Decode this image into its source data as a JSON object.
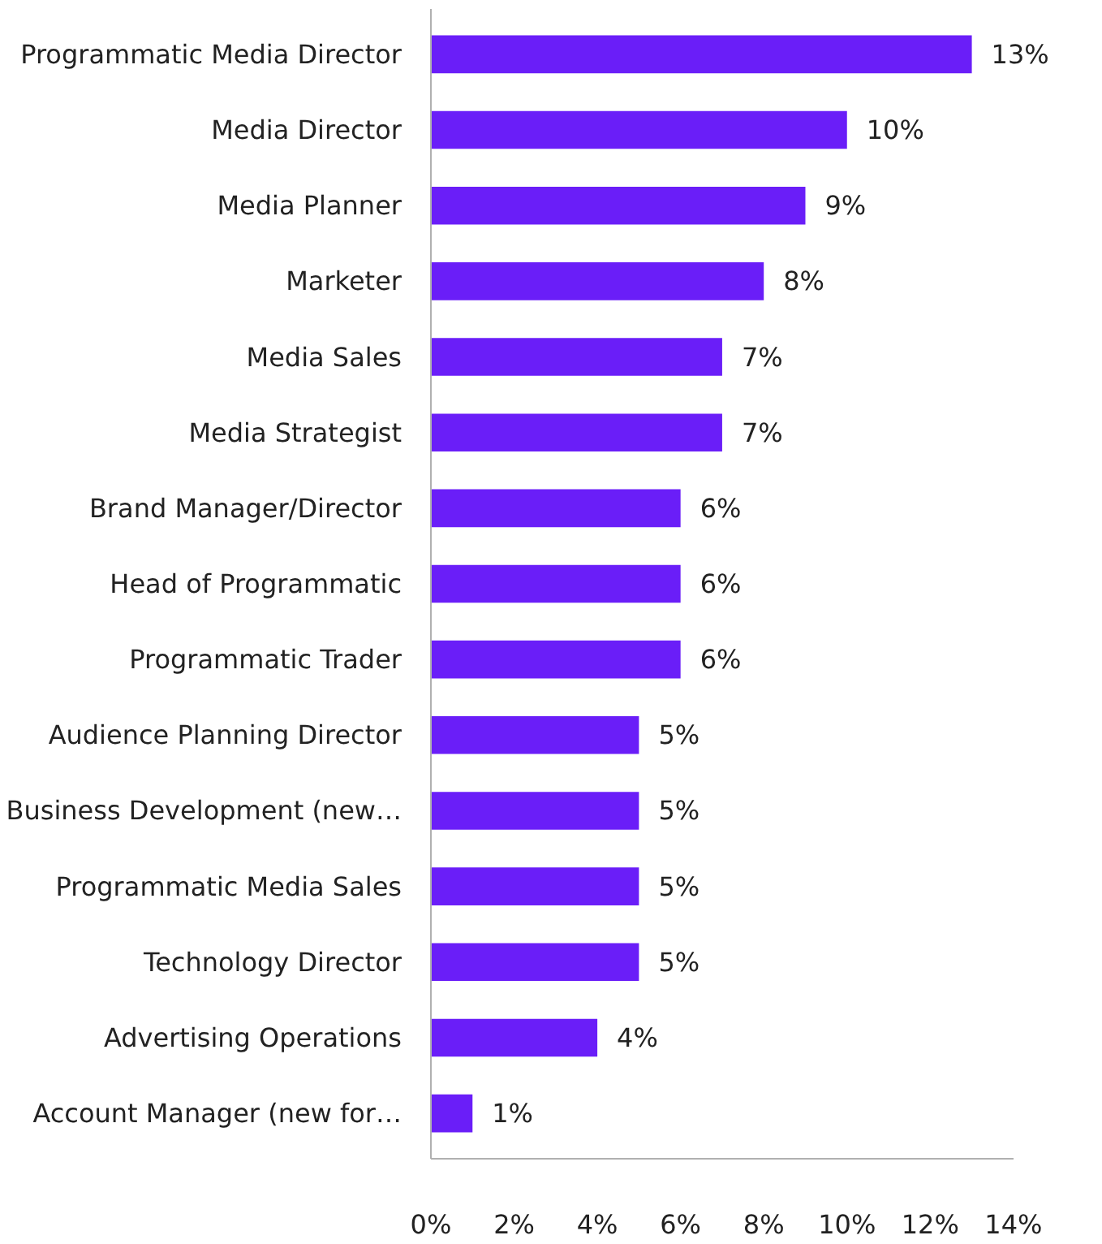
{
  "chart_data": {
    "type": "bar",
    "orientation": "horizontal",
    "categories": [
      "Programmatic Media Director",
      "Media Director",
      "Media Planner",
      "Marketer",
      "Media Sales",
      "Media Strategist",
      "Brand Manager/Director",
      "Head of Programmatic",
      "Programmatic Trader",
      "Audience Planning Director",
      "Business Development (new…",
      "Programmatic Media Sales",
      "Technology Director",
      "Advertising Operations",
      "Account Manager (new for…"
    ],
    "values": [
      13,
      10,
      9,
      8,
      7,
      7,
      6,
      6,
      6,
      5,
      5,
      5,
      5,
      4,
      1
    ],
    "value_labels": [
      "13%",
      "10%",
      "9%",
      "8%",
      "7%",
      "7%",
      "6%",
      "6%",
      "6%",
      "5%",
      "5%",
      "5%",
      "5%",
      "4%",
      "1%"
    ],
    "color": "#6a1ef8",
    "xlim": [
      0,
      14
    ],
    "xticks": [
      {
        "value": 0,
        "label": "0%"
      },
      {
        "value": 2,
        "label": "2%"
      },
      {
        "value": 4,
        "label": "4%"
      },
      {
        "value": 6,
        "label": "6%"
      },
      {
        "value": 8,
        "label": "8%"
      },
      {
        "value": 10,
        "label": "10%"
      },
      {
        "value": 12,
        "label": "12%"
      },
      {
        "value": 14,
        "label": "14%"
      }
    ],
    "grid": false
  }
}
